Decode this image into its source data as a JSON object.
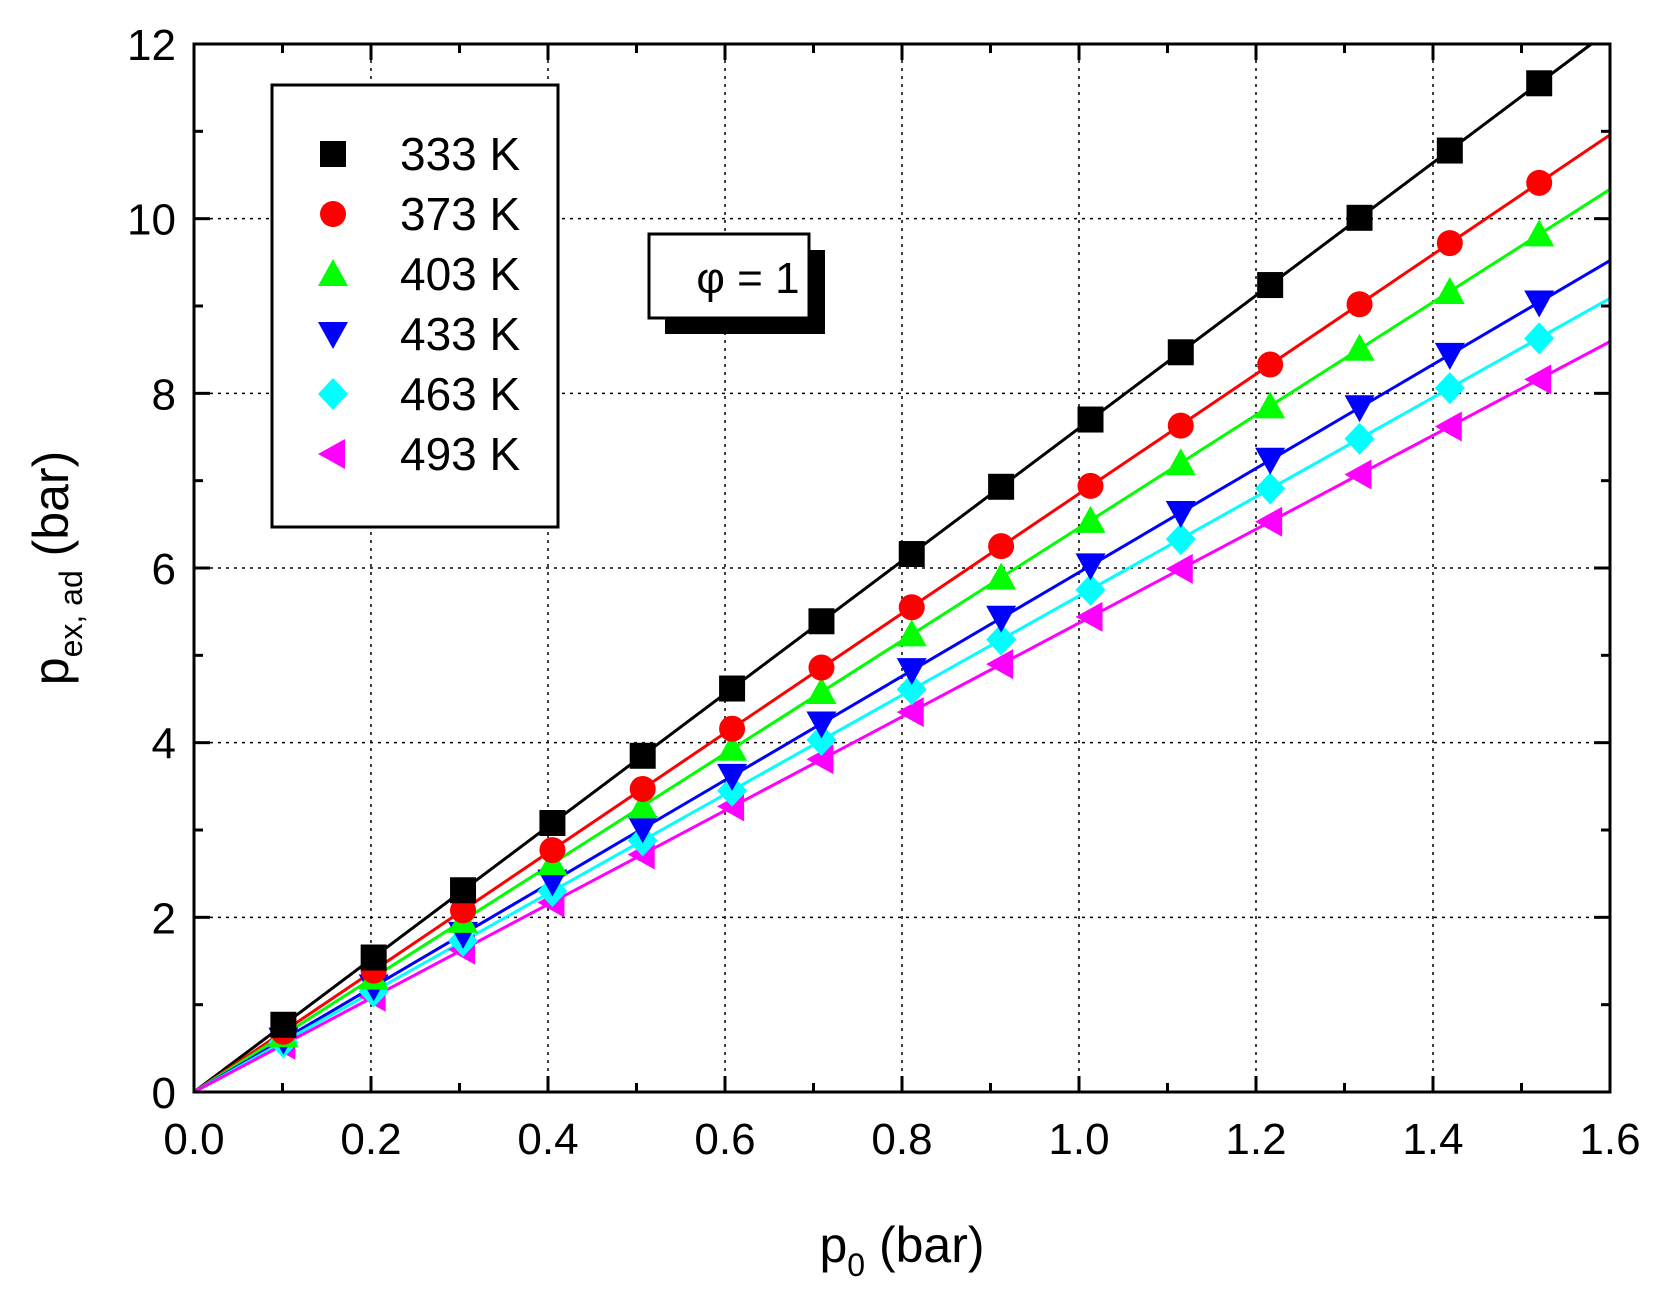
{
  "chart_data": {
    "type": "line",
    "title": "",
    "xlabel": {
      "base": "p",
      "sub": "0",
      "unit": " (bar)"
    },
    "ylabel": {
      "base": "p",
      "sub": "ex, ad",
      "unit": " (bar)"
    },
    "xlim": [
      0.0,
      1.6
    ],
    "ylim": [
      0,
      12
    ],
    "x_ticks": [
      0.0,
      0.2,
      0.4,
      0.6,
      0.8,
      1.0,
      1.2,
      1.4,
      1.6
    ],
    "x_tick_labels": [
      "0.0",
      "0.2",
      "0.4",
      "0.6",
      "0.8",
      "1.0",
      "1.2",
      "1.4",
      "1.6"
    ],
    "y_ticks": [
      0,
      2,
      4,
      6,
      8,
      10,
      12
    ],
    "y_tick_labels": [
      "0",
      "2",
      "4",
      "6",
      "8",
      "10",
      "12"
    ],
    "grid": true,
    "legend_position": "top-left",
    "annotation": "φ = 1",
    "x": [
      0.101,
      0.203,
      0.304,
      0.405,
      0.507,
      0.608,
      0.709,
      0.811,
      0.912,
      1.013,
      1.115,
      1.216,
      1.317,
      1.419,
      1.52
    ],
    "series": [
      {
        "name": "333 K",
        "color": "#000000",
        "marker": "square",
        "slope": 7.6,
        "values": [
          0.77,
          1.54,
          2.31,
          3.08,
          3.85,
          4.62,
          5.39,
          6.16,
          6.93,
          7.7,
          8.47,
          9.24,
          10.01,
          10.78,
          11.55
        ]
      },
      {
        "name": "373 K",
        "color": "#ff0000",
        "marker": "circle",
        "slope": 6.85,
        "values": [
          0.69,
          1.39,
          2.08,
          2.77,
          3.47,
          4.16,
          4.86,
          5.55,
          6.25,
          6.94,
          7.63,
          8.33,
          9.02,
          9.72,
          10.41
        ]
      },
      {
        "name": "403 K",
        "color": "#00ff00",
        "marker": "triangle-up",
        "slope": 6.46,
        "values": [
          0.65,
          1.31,
          1.96,
          2.62,
          3.27,
          3.93,
          4.58,
          5.24,
          5.89,
          6.54,
          7.2,
          7.85,
          8.51,
          9.16,
          9.82
        ]
      },
      {
        "name": "433 K",
        "color": "#0000ff",
        "marker": "triangle-down",
        "slope": 5.95,
        "values": [
          0.6,
          1.21,
          1.81,
          2.41,
          3.02,
          3.62,
          4.22,
          4.83,
          5.43,
          6.03,
          6.63,
          7.24,
          7.84,
          8.44,
          9.04
        ]
      },
      {
        "name": "463 K",
        "color": "#00ffff",
        "marker": "diamond",
        "slope": 5.68,
        "values": [
          0.57,
          1.15,
          1.73,
          2.3,
          2.88,
          3.45,
          4.03,
          4.61,
          5.18,
          5.75,
          6.33,
          6.91,
          7.48,
          8.06,
          8.63
        ]
      },
      {
        "name": "493 K",
        "color": "#ff00ff",
        "marker": "triangle-left",
        "slope": 5.37,
        "values": [
          0.54,
          1.09,
          1.63,
          2.17,
          2.72,
          3.27,
          3.81,
          4.35,
          4.9,
          5.44,
          5.99,
          6.53,
          7.07,
          7.62,
          8.16
        ]
      }
    ]
  }
}
